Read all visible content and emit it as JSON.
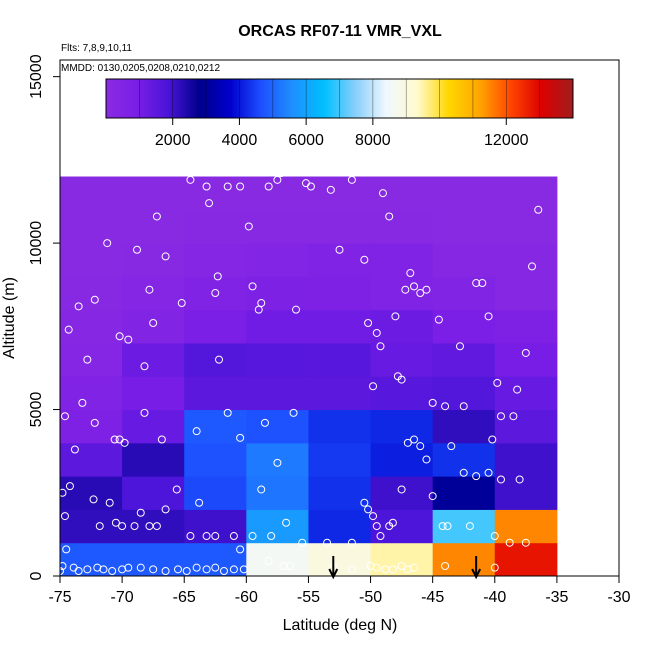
{
  "chart_data": {
    "type": "heatmap",
    "title": "ORCAS RF07-11 VMR_VXL",
    "annotations": {
      "flights": "Flts: 7,8,9,10,11",
      "dates": "MMDD: 0130,0205,0208,0210,0212"
    },
    "xlabel": "Latitude (deg N)",
    "ylabel": "Altitude (m)",
    "xlim": [
      -75,
      -30
    ],
    "ylim": [
      0,
      15500
    ],
    "xticks": [
      -75,
      -70,
      -65,
      -60,
      -55,
      -50,
      -45,
      -40,
      -35,
      -30
    ],
    "yticks": [
      0,
      5000,
      10000,
      15000
    ],
    "grid": false,
    "colorbar": {
      "range": [
        0,
        14000
      ],
      "ticks": [
        2000,
        4000,
        6000,
        8000,
        12000
      ],
      "colors": [
        "#8a2be2",
        "#7a1ee6",
        "#4a14d8",
        "#00008b",
        "#0000cd",
        "#1e50ff",
        "#1e90ff",
        "#00bfff",
        "#87cefa",
        "#f0f8ff",
        "#fffacd",
        "#ffd700",
        "#ffa500",
        "#ff4500",
        "#dc0000",
        "#a01e1e"
      ]
    },
    "cells": {
      "lat_edges": [
        -75,
        -70,
        -65,
        -60,
        -55,
        -50,
        -45,
        -40,
        -35
      ],
      "alt_edges": [
        0,
        1000,
        2000,
        3000,
        4000,
        5000,
        6000,
        7000,
        8000,
        9000,
        10000,
        11000,
        12000
      ],
      "values": [
        [
          4800,
          4800,
          4800,
          8600,
          9000,
          9500,
          11500,
          12800
        ],
        [
          2200,
          2200,
          2000,
          5800,
          4200,
          1800,
          7000,
          11500
        ],
        [
          2300,
          1800,
          4600,
          5200,
          4300,
          2000,
          3000,
          2000
        ],
        [
          1500,
          2300,
          4700,
          5300,
          4400,
          4100,
          4300,
          2000
        ],
        [
          700,
          1300,
          4800,
          4700,
          4300,
          4200,
          2200,
          1500
        ],
        [
          600,
          1000,
          1500,
          1500,
          1500,
          1600,
          1700,
          1300
        ],
        [
          350,
          1200,
          1700,
          1600,
          1600,
          1300,
          1400,
          1000
        ],
        [
          250,
          500,
          900,
          1100,
          1100,
          1200,
          900,
          700
        ],
        [
          150,
          350,
          550,
          750,
          700,
          600,
          500,
          300
        ],
        [
          100,
          200,
          350,
          450,
          550,
          600,
          300,
          250
        ],
        [
          100,
          100,
          150,
          150,
          150,
          150,
          100,
          100
        ],
        [
          100,
          100,
          100,
          100,
          100,
          100,
          100,
          100
        ]
      ]
    },
    "points": [
      [
        -75,
        0.15
      ],
      [
        -74.8,
        0.3
      ],
      [
        -73.9,
        0.25
      ],
      [
        -73.5,
        0.15
      ],
      [
        -72.8,
        0.2
      ],
      [
        -72,
        0.25
      ],
      [
        -71.5,
        0.2
      ],
      [
        -70.8,
        0.15
      ],
      [
        -70,
        0.2
      ],
      [
        -69.5,
        0.25
      ],
      [
        -68.5,
        0.25
      ],
      [
        -67.5,
        0.2
      ],
      [
        -66.5,
        0.15
      ],
      [
        -65.5,
        0.2
      ],
      [
        -64.8,
        0.15
      ],
      [
        -64,
        0.25
      ],
      [
        -63.2,
        0.2
      ],
      [
        -62.5,
        0.25
      ],
      [
        -61.8,
        0.15
      ],
      [
        -61,
        0.2
      ],
      [
        -60.2,
        0.2
      ],
      [
        -74.5,
        0.8
      ],
      [
        -74.8,
        2.5
      ],
      [
        -74.2,
        2.7
      ],
      [
        -74.6,
        1.8
      ],
      [
        -73.8,
        3.8
      ],
      [
        -72.3,
        2.3
      ],
      [
        -71.8,
        1.5
      ],
      [
        -71,
        2.2
      ],
      [
        -70.5,
        1.6
      ],
      [
        -70,
        1.5
      ],
      [
        -69,
        1.5
      ],
      [
        -68.5,
        1.9
      ],
      [
        -67.8,
        1.5
      ],
      [
        -67.2,
        1.5
      ],
      [
        -66.5,
        2.0
      ],
      [
        -65.6,
        2.6
      ],
      [
        -64.5,
        1.2
      ],
      [
        -63.8,
        2.2
      ],
      [
        -63.2,
        1.2
      ],
      [
        -62.5,
        1.2
      ],
      [
        -61,
        1.2
      ],
      [
        -60.5,
        0.8
      ],
      [
        -59.5,
        1.2
      ],
      [
        -74.6,
        4.8
      ],
      [
        -73.2,
        5.2
      ],
      [
        -72.2,
        4.6
      ],
      [
        -70.6,
        4.1
      ],
      [
        -70.2,
        4.1
      ],
      [
        -69.8,
        4
      ],
      [
        -68.2,
        4.9
      ],
      [
        -66.8,
        4.1
      ],
      [
        -64,
        4.35
      ],
      [
        -61.5,
        4.9
      ],
      [
        -60.5,
        4.15
      ],
      [
        -58.5,
        4.6
      ],
      [
        -57.5,
        3.4
      ],
      [
        -56.2,
        4.9
      ],
      [
        -58.8,
        2.6
      ],
      [
        -56.8,
        1.6
      ],
      [
        -58,
        1.2
      ],
      [
        -58.2,
        0.45
      ],
      [
        -57,
        0.3
      ],
      [
        -56.5,
        0.3
      ],
      [
        -53,
        0.25
      ],
      [
        -51.5,
        0.2
      ],
      [
        -50,
        0.3
      ],
      [
        -49.5,
        0.25
      ],
      [
        -48.8,
        0.2
      ],
      [
        -48.2,
        0.2
      ],
      [
        -47.5,
        0.3
      ],
      [
        -47,
        0.2
      ],
      [
        -46.5,
        0.25
      ],
      [
        -44,
        0.3
      ],
      [
        -40,
        0.25
      ],
      [
        -74.3,
        7.4
      ],
      [
        -73.5,
        8.1
      ],
      [
        -72.8,
        6.5
      ],
      [
        -72.2,
        8.3
      ],
      [
        -71.2,
        10
      ],
      [
        -70.2,
        7.2
      ],
      [
        -69.5,
        7.1
      ],
      [
        -68.8,
        9.8
      ],
      [
        -68.2,
        6.3
      ],
      [
        -67.8,
        8.6
      ],
      [
        -67.5,
        7.6
      ],
      [
        -67.2,
        10.8
      ],
      [
        -66.5,
        9.6
      ],
      [
        -65.2,
        8.2
      ],
      [
        -64.5,
        11.9
      ],
      [
        -63.2,
        11.7
      ],
      [
        -63,
        11.2
      ],
      [
        -62.5,
        8.5
      ],
      [
        -62.3,
        9
      ],
      [
        -62.2,
        6.5
      ],
      [
        -61.5,
        11.7
      ],
      [
        -60.5,
        11.7
      ],
      [
        -59.8,
        10.5
      ],
      [
        -59.5,
        8.7
      ],
      [
        -59,
        8.0
      ],
      [
        -58.8,
        8.2
      ],
      [
        -58.2,
        11.7
      ],
      [
        -57.5,
        11.9
      ],
      [
        -57.2,
        12.1
      ],
      [
        -56,
        8.0
      ],
      [
        -55.2,
        11.8
      ],
      [
        -54.8,
        11.7
      ],
      [
        -53.2,
        11.6
      ],
      [
        -52.5,
        9.8
      ],
      [
        -51.5,
        11.9
      ],
      [
        -50.5,
        9.5
      ],
      [
        -50.2,
        7.6
      ],
      [
        -49.8,
        5.7
      ],
      [
        -49.5,
        7.3
      ],
      [
        -49.2,
        6.9
      ],
      [
        -49,
        11.5
      ],
      [
        -48.5,
        10.8
      ],
      [
        -48,
        7.8
      ],
      [
        -47.8,
        6.0
      ],
      [
        -47.5,
        5.9
      ],
      [
        -47.2,
        8.6
      ],
      [
        -46.8,
        9.1
      ],
      [
        -46.5,
        8.7
      ],
      [
        -46,
        8.5
      ],
      [
        -45.5,
        8.6
      ],
      [
        -45,
        5.2
      ],
      [
        -44.5,
        7.7
      ],
      [
        -44,
        5.1
      ],
      [
        -43.5,
        3.9
      ],
      [
        -42.8,
        6.9
      ],
      [
        -42.5,
        5.1
      ],
      [
        -41.5,
        8.8
      ],
      [
        -41,
        8.8
      ],
      [
        -40.5,
        7.8
      ],
      [
        -40.2,
        4.1
      ],
      [
        -39.8,
        5.8
      ],
      [
        -39.5,
        4.8
      ],
      [
        -38.5,
        4.8
      ],
      [
        -38.2,
        5.6
      ],
      [
        -37.5,
        6.7
      ],
      [
        -37,
        9.3
      ],
      [
        -36.5,
        11.0
      ],
      [
        -55.5,
        1.0
      ],
      [
        -53.5,
        1.0
      ],
      [
        -51.5,
        1.0
      ],
      [
        -50.5,
        2.2
      ],
      [
        -50.2,
        2.0
      ],
      [
        -49.8,
        1.8
      ],
      [
        -49.5,
        1.5
      ],
      [
        -49.2,
        1.2
      ],
      [
        -48.5,
        1.5
      ],
      [
        -48.2,
        1.6
      ],
      [
        -47.5,
        2.6
      ],
      [
        -47,
        4.0
      ],
      [
        -46.5,
        4.1
      ],
      [
        -46,
        3.9
      ],
      [
        -45.5,
        3.5
      ],
      [
        -45,
        2.4
      ],
      [
        -44.2,
        1.5
      ],
      [
        -43.8,
        1.5
      ],
      [
        -42.5,
        3.1
      ],
      [
        -41.5,
        3.0
      ],
      [
        -40.5,
        3.1
      ],
      [
        -39.5,
        2.9
      ],
      [
        -38,
        2.9
      ],
      [
        -37.5,
        1.0
      ],
      [
        -42,
        1.5
      ],
      [
        -40,
        1.2
      ],
      [
        -38.8,
        1.0
      ]
    ],
    "arrows": [
      -53,
      -41.5
    ]
  }
}
